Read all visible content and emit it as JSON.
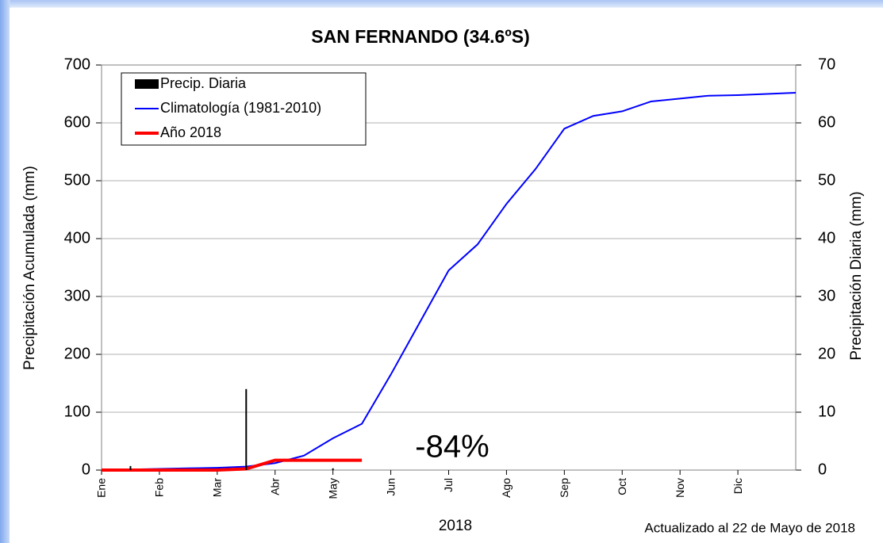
{
  "chart_data": {
    "type": "line",
    "title": "SAN FERNANDO (34.6ºS)",
    "ylabel": "Precipitación Acumulada  (mm)",
    "y2label": "Precipitación Diaria (mm)",
    "xlabel": "2018",
    "footnote": "Actualizado al 22 de Mayo de 2018",
    "annotation": "-84%",
    "categories": [
      "Ene",
      null,
      "Feb",
      null,
      "Mar",
      null,
      "Abr",
      null,
      "May",
      null,
      "Jun",
      null,
      "Jul",
      null,
      "Ago",
      null,
      "Sep",
      null,
      "Oct",
      null,
      "Nov",
      null,
      "Dic",
      null,
      null
    ],
    "ylim": [
      0,
      700
    ],
    "yticks": [
      0,
      100,
      200,
      300,
      400,
      500,
      600,
      700
    ],
    "y2lim": [
      0,
      70
    ],
    "y2ticks": [
      0,
      10,
      20,
      30,
      40,
      50,
      60,
      70
    ],
    "grid": true,
    "legend": "upper left",
    "series": [
      {
        "name": "Precip. Diaria",
        "type": "bar",
        "axis": "y2",
        "color": "#000000",
        "values": [
          null,
          0.7,
          null,
          null,
          null,
          14,
          null,
          null,
          0.3,
          null,
          null,
          null,
          null,
          null,
          null,
          null,
          null,
          null,
          null,
          null,
          null,
          null,
          null,
          null,
          null
        ]
      },
      {
        "name": "Climatología (1981-2010)",
        "color": "#0000ff",
        "values": [
          0,
          1,
          2,
          3,
          4,
          6,
          12,
          25,
          55,
          80,
          165,
          255,
          345,
          390,
          460,
          520,
          590,
          612,
          620,
          637,
          642,
          647,
          648,
          650,
          652
        ]
      },
      {
        "name": "Año 2018",
        "color": "#ff0000",
        "values": [
          0,
          0,
          0,
          0,
          0,
          2,
          17,
          17,
          17,
          17,
          null,
          null,
          null,
          null,
          null,
          null,
          null,
          null,
          null,
          null,
          null,
          null,
          null,
          null,
          null
        ]
      }
    ]
  }
}
